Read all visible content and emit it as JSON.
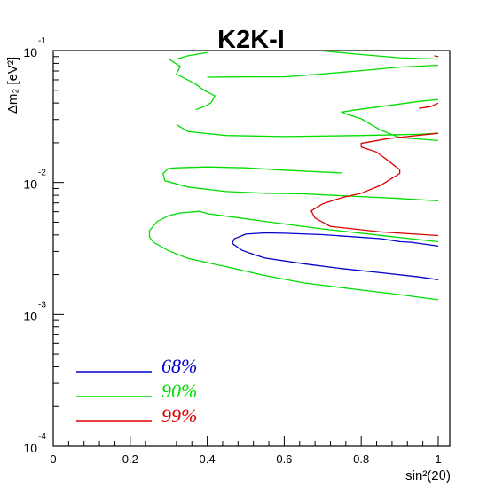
{
  "chart_data": {
    "type": "contour",
    "title": "K2K-I",
    "xlabel": "sin²(2θ)",
    "ylabel": "Δm₂ [eV²]",
    "xlim": [
      0,
      1.03
    ],
    "ylim": [
      0.0001,
      0.1
    ],
    "yscale": "log",
    "grid": false,
    "legend_position": "bottom-left",
    "x_ticks": [
      {
        "value": 0,
        "label": "0"
      },
      {
        "value": 0.2,
        "label": "0.2"
      },
      {
        "value": 0.4,
        "label": "0.4"
      },
      {
        "value": 0.6,
        "label": "0.6"
      },
      {
        "value": 0.8,
        "label": "0.8"
      },
      {
        "value": 1.0,
        "label": "1"
      }
    ],
    "y_ticks": [
      {
        "value": 0.1,
        "base": "10",
        "exp": "-1"
      },
      {
        "value": 0.01,
        "base": "10",
        "exp": "-2"
      },
      {
        "value": 0.001,
        "base": "10",
        "exp": "-3"
      },
      {
        "value": 0.0001,
        "base": "10",
        "exp": "-4"
      }
    ],
    "series": [
      {
        "name": "68%",
        "color": "#0000cc",
        "paths": [
          [
            [
              1.0,
              0.00329
            ],
            [
              0.93,
              0.00352
            ],
            [
              0.9,
              0.00356
            ],
            [
              0.85,
              0.00375
            ],
            [
              0.7,
              0.00402
            ],
            [
              0.6,
              0.00412
            ],
            [
              0.55,
              0.00415
            ],
            [
              0.5,
              0.00406
            ],
            [
              0.47,
              0.00374
            ],
            [
              0.465,
              0.00345
            ],
            [
              0.49,
              0.00306
            ],
            [
              0.52,
              0.00285
            ],
            [
              0.55,
              0.00267
            ],
            [
              0.65,
              0.00242
            ],
            [
              0.75,
              0.00222
            ],
            [
              0.85,
              0.00207
            ],
            [
              0.95,
              0.00192
            ],
            [
              1.0,
              0.00183
            ]
          ]
        ]
      },
      {
        "name": "90%",
        "color": "#00dd00",
        "paths": [
          [
            [
              1.0,
              0.00355
            ],
            [
              0.85,
              0.00397
            ],
            [
              0.7,
              0.00444
            ],
            [
              0.55,
              0.00506
            ],
            [
              0.45,
              0.00555
            ],
            [
              0.4,
              0.00579
            ],
            [
              0.38,
              0.00604
            ],
            [
              0.33,
              0.00588
            ],
            [
              0.3,
              0.0056
            ],
            [
              0.27,
              0.00506
            ],
            [
              0.25,
              0.00432
            ],
            [
              0.25,
              0.00385
            ],
            [
              0.26,
              0.00353
            ],
            [
              0.3,
              0.00303
            ],
            [
              0.35,
              0.00266
            ],
            [
              0.45,
              0.00229
            ],
            [
              0.55,
              0.00197
            ],
            [
              0.65,
              0.00173
            ],
            [
              0.8,
              0.00153
            ],
            [
              0.9,
              0.00141
            ],
            [
              1.0,
              0.00129
            ]
          ],
          [
            [
              0.75,
              0.0118
            ],
            [
              0.6,
              0.0124
            ],
            [
              0.5,
              0.0129
            ],
            [
              0.4,
              0.0131
            ],
            [
              0.32,
              0.0129
            ],
            [
              0.3,
              0.0128
            ],
            [
              0.285,
              0.0117
            ],
            [
              0.29,
              0.0103
            ],
            [
              0.35,
              0.00923
            ],
            [
              0.45,
              0.00854
            ],
            [
              0.55,
              0.00829
            ],
            [
              0.65,
              0.0082
            ],
            [
              0.75,
              0.00794
            ],
            [
              0.88,
              0.00761
            ],
            [
              1.0,
              0.00725
            ]
          ],
          [
            [
              1.0,
              0.0208
            ],
            [
              0.9,
              0.0219
            ],
            [
              0.85,
              0.025
            ],
            [
              0.8,
              0.0304
            ],
            [
              0.76,
              0.0331
            ],
            [
              0.75,
              0.0342
            ],
            [
              0.78,
              0.0353
            ],
            [
              0.85,
              0.0376
            ],
            [
              0.95,
              0.0412
            ],
            [
              1.0,
              0.0425
            ]
          ],
          [
            [
              0.32,
              0.0275
            ],
            [
              0.35,
              0.0243
            ],
            [
              0.45,
              0.0227
            ],
            [
              0.6,
              0.0223
            ],
            [
              0.8,
              0.0227
            ],
            [
              0.95,
              0.0232
            ],
            [
              1.0,
              0.0236
            ]
          ],
          [
            [
              0.3,
              0.0862
            ],
            [
              0.33,
              0.0758
            ],
            [
              0.32,
              0.0664
            ],
            [
              0.37,
              0.0557
            ],
            [
              0.39,
              0.0503
            ],
            [
              0.42,
              0.0453
            ],
            [
              0.41,
              0.0403
            ],
            [
              0.4,
              0.0386
            ],
            [
              0.37,
              0.0356
            ]
          ],
          [
            [
              0.4,
              0.0628
            ],
            [
              0.5,
              0.0632
            ],
            [
              0.6,
              0.0632
            ],
            [
              0.7,
              0.0665
            ],
            [
              0.8,
              0.0705
            ],
            [
              0.9,
              0.075
            ],
            [
              1.0,
              0.0774
            ]
          ],
          [
            [
              0.32,
              0.0862
            ],
            [
              0.35,
              0.0912
            ],
            [
              0.4,
              0.0968
            ]
          ],
          [
            [
              0.7,
              0.0992
            ],
            [
              0.8,
              0.0932
            ],
            [
              0.9,
              0.0882
            ],
            [
              1.0,
              0.0862
            ]
          ]
        ]
      },
      {
        "name": "99%",
        "color": "#dd0000",
        "paths": [
          [
            [
              1.0,
              0.00396
            ],
            [
              0.85,
              0.00422
            ],
            [
              0.72,
              0.00464
            ],
            [
              0.68,
              0.00537
            ],
            [
              0.67,
              0.00609
            ],
            [
              0.68,
              0.00634
            ],
            [
              0.7,
              0.00689
            ],
            [
              0.75,
              0.00767
            ],
            [
              0.8,
              0.00829
            ],
            [
              0.85,
              0.00949
            ],
            [
              0.9,
              0.0117
            ],
            [
              0.9,
              0.0125
            ],
            [
              0.87,
              0.0146
            ],
            [
              0.84,
              0.017
            ],
            [
              0.8,
              0.0186
            ],
            [
              0.8,
              0.0198
            ],
            [
              0.87,
              0.0215
            ],
            [
              0.95,
              0.0228
            ],
            [
              1.0,
              0.0236
            ]
          ],
          [
            [
              0.95,
              0.0364
            ],
            [
              0.98,
              0.0376
            ],
            [
              1.0,
              0.0399
            ]
          ],
          [
            [
              1.0,
              0.0899
            ],
            [
              0.99,
              0.0912
            ]
          ]
        ]
      }
    ],
    "legend": [
      {
        "label": "68%",
        "color": "#0000cc"
      },
      {
        "label": "90%",
        "color": "#00dd00"
      },
      {
        "label": "99%",
        "color": "#dd0000"
      }
    ]
  }
}
